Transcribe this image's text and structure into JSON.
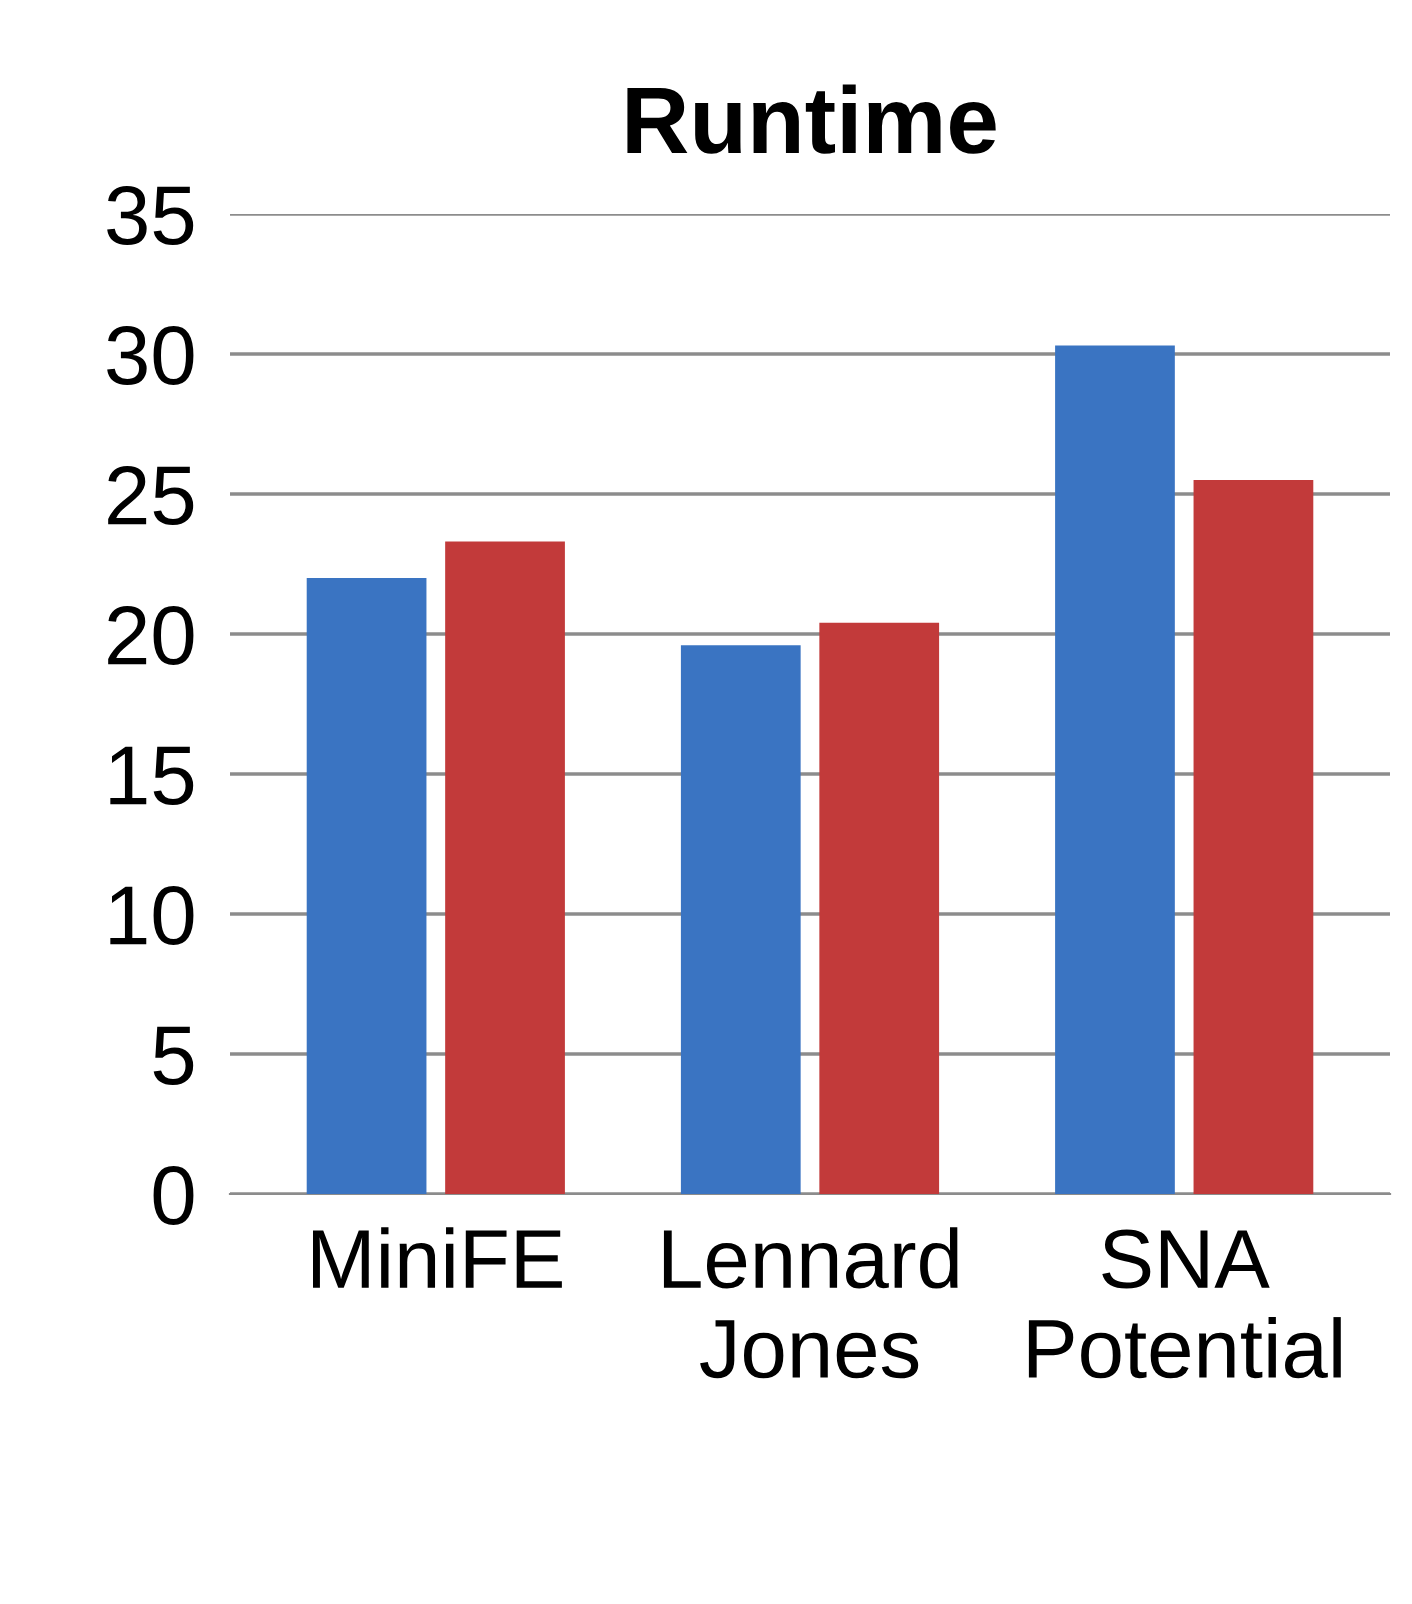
{
  "chart_data": {
    "type": "bar",
    "title": "Runtime",
    "categories": [
      "MiniFE",
      "Lennard Jones",
      "SNA Potential"
    ],
    "series": [
      {
        "color": "#3a74c2",
        "values": [
          22.0,
          19.6,
          30.3
        ]
      },
      {
        "color": "#c23a3a",
        "values": [
          23.3,
          20.4,
          25.5
        ]
      }
    ],
    "ylim": [
      0,
      35
    ],
    "yticks": [
      0,
      5,
      10,
      15,
      20,
      25,
      30,
      35
    ],
    "grid": "y"
  }
}
